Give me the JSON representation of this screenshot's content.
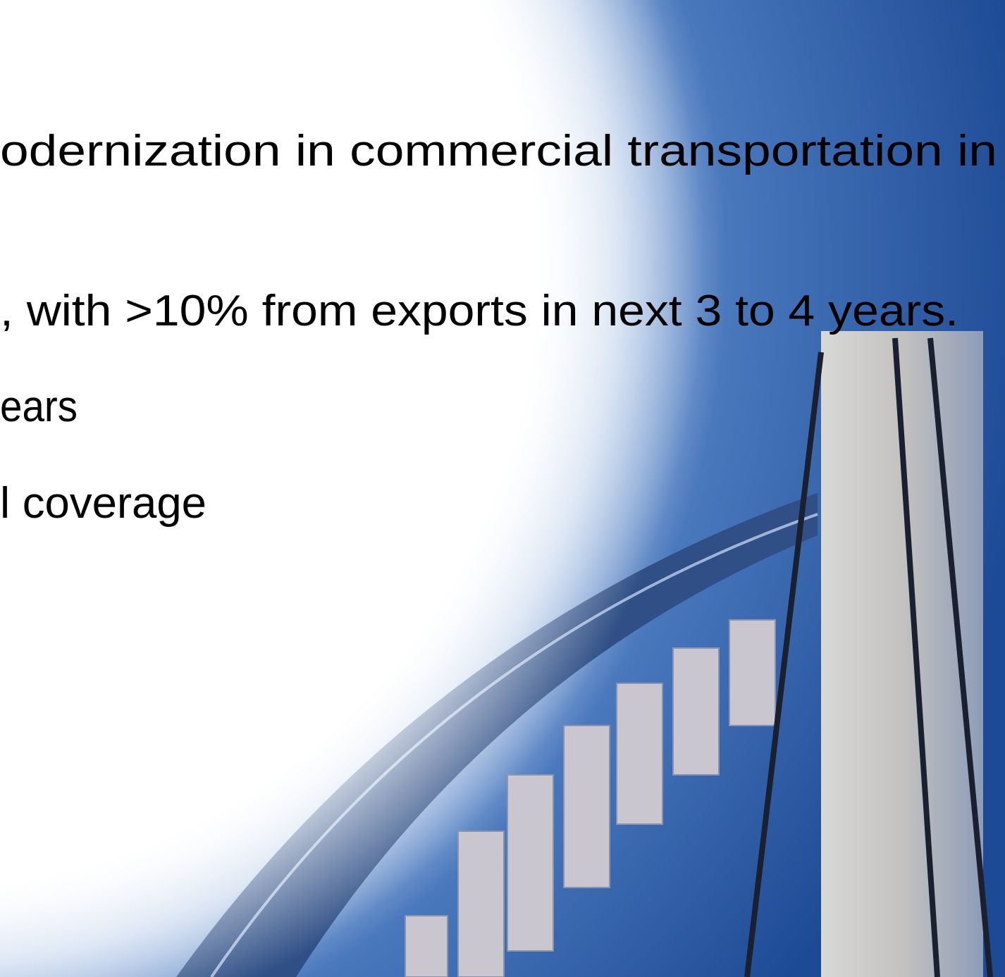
{
  "lines": [
    "odernization in commercial transportation in",
    ", with >10% from exports in next 3 to 4 years.",
    "ears",
    "l coverage"
  ]
}
